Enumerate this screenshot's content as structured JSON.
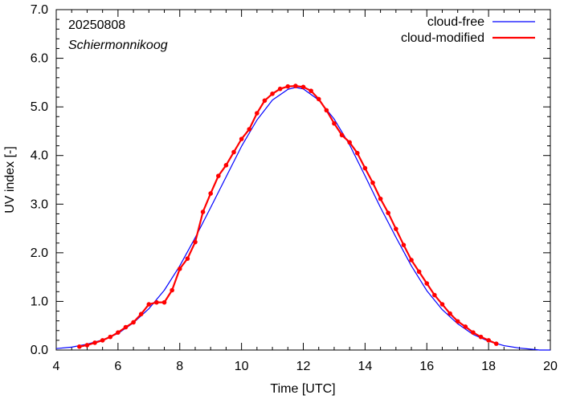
{
  "chart_data": {
    "type": "line",
    "xlabel": "Time  [UTC]",
    "ylabel": "UV index  [-]",
    "xlim": [
      4,
      20
    ],
    "ylim": [
      0,
      7
    ],
    "x_ticks": [
      "4",
      "6",
      "8",
      "10",
      "12",
      "14",
      "16",
      "18",
      "20"
    ],
    "y_ticks": [
      "0.0",
      "1.0",
      "2.0",
      "3.0",
      "4.0",
      "5.0",
      "6.0",
      "7.0"
    ],
    "annotations": [
      "20250808",
      "Schiermonnikoog"
    ],
    "legend_position": "top-right",
    "series": [
      {
        "name": "cloud-free",
        "color": "#0000ff",
        "x": [
          4.0,
          4.5,
          5.0,
          5.5,
          6.0,
          6.5,
          7.0,
          7.5,
          8.0,
          8.5,
          9.0,
          9.5,
          10.0,
          10.5,
          11.0,
          11.5,
          11.75,
          12.0,
          12.5,
          13.0,
          13.5,
          14.0,
          14.5,
          15.0,
          15.5,
          16.0,
          16.5,
          17.0,
          17.5,
          18.0,
          18.5,
          19.0,
          19.5,
          19.65,
          20.0
        ],
        "y": [
          0.03,
          0.06,
          0.12,
          0.21,
          0.34,
          0.56,
          0.85,
          1.23,
          1.73,
          2.31,
          2.93,
          3.56,
          4.19,
          4.73,
          5.14,
          5.36,
          5.4,
          5.37,
          5.14,
          4.75,
          4.22,
          3.58,
          2.93,
          2.32,
          1.73,
          1.22,
          0.83,
          0.54,
          0.32,
          0.18,
          0.09,
          0.04,
          0.01,
          0.0,
          0.0
        ]
      },
      {
        "name": "cloud-modified",
        "color": "#ff0000",
        "x": [
          4.75,
          5.0,
          5.25,
          5.5,
          5.75,
          6.0,
          6.25,
          6.5,
          6.75,
          7.0,
          7.25,
          7.5,
          7.75,
          8.0,
          8.25,
          8.5,
          8.75,
          9.0,
          9.25,
          9.5,
          9.75,
          10.0,
          10.25,
          10.5,
          10.75,
          11.0,
          11.25,
          11.5,
          11.75,
          12.0,
          12.25,
          12.5,
          12.75,
          13.0,
          13.25,
          13.5,
          13.75,
          14.0,
          14.25,
          14.5,
          14.75,
          15.0,
          15.25,
          15.5,
          15.75,
          16.0,
          16.25,
          16.5,
          16.75,
          17.0,
          17.25,
          17.5,
          17.75,
          18.0,
          18.25
        ],
        "y": [
          0.07,
          0.1,
          0.15,
          0.2,
          0.27,
          0.36,
          0.47,
          0.57,
          0.74,
          0.94,
          0.98,
          0.98,
          1.23,
          1.67,
          1.88,
          2.22,
          2.84,
          3.22,
          3.58,
          3.8,
          4.07,
          4.34,
          4.54,
          4.87,
          5.13,
          5.27,
          5.37,
          5.42,
          5.43,
          5.41,
          5.33,
          5.16,
          4.93,
          4.66,
          4.42,
          4.27,
          4.05,
          3.74,
          3.44,
          3.11,
          2.82,
          2.49,
          2.16,
          1.85,
          1.61,
          1.37,
          1.13,
          0.94,
          0.75,
          0.59,
          0.48,
          0.36,
          0.27,
          0.2,
          0.13
        ]
      }
    ]
  }
}
